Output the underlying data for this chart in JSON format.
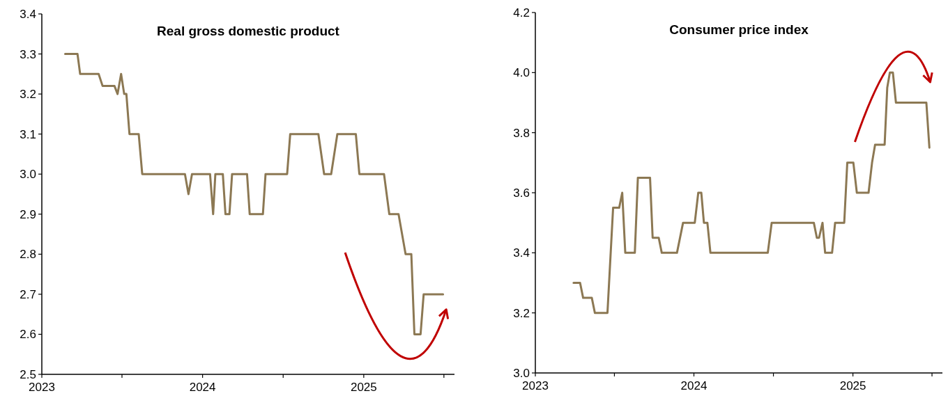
{
  "chart_data": [
    {
      "type": "line",
      "title": "Real gross domestic product",
      "x": [
        "2023-02-23",
        "2023-03-23",
        "2023-03-29",
        "2023-05-10",
        "2023-05-19",
        "2023-06-15",
        "2023-06-22",
        "2023-06-30",
        "2023-07-07",
        "2023-07-12",
        "2023-07-19",
        "2023-08-09",
        "2023-08-17",
        "2023-11-22",
        "2023-11-30",
        "2023-12-08",
        "2024-01-18",
        "2024-01-25",
        "2024-01-30",
        "2024-02-16",
        "2024-02-22",
        "2024-03-02",
        "2024-03-08",
        "2024-04-11",
        "2024-04-17",
        "2024-05-17",
        "2024-05-23",
        "2024-07-11",
        "2024-07-18",
        "2024-09-20",
        "2024-10-03",
        "2024-10-19",
        "2024-11-02",
        "2024-12-14",
        "2024-12-22",
        "2025-02-16",
        "2025-02-28",
        "2025-03-21",
        "2025-04-06",
        "2025-04-19",
        "2025-04-26",
        "2025-05-10",
        "2025-05-17",
        "2025-06-30"
      ],
      "series": [
        {
          "color": "#8c7853",
          "values": [
            3.3,
            3.3,
            3.25,
            3.25,
            3.22,
            3.22,
            3.2,
            3.25,
            3.2,
            3.2,
            3.1,
            3.1,
            3.0,
            3.0,
            2.95,
            3.0,
            3.0,
            2.9,
            3.0,
            3.0,
            2.9,
            2.9,
            3.0,
            3.0,
            2.9,
            2.9,
            3.0,
            3.0,
            3.1,
            3.1,
            3.0,
            3.0,
            3.1,
            3.1,
            3.0,
            3.0,
            2.9,
            2.9,
            2.8,
            2.8,
            2.6,
            2.6,
            2.7,
            2.7
          ]
        }
      ],
      "xlim": [
        "2023-01-01",
        "2025-07-26"
      ],
      "xticks": [
        {
          "value": "2023-01-01",
          "label": "2023"
        },
        {
          "value": "2023-07-02",
          "label": null
        },
        {
          "value": "2024-01-01",
          "label": "2024"
        },
        {
          "value": "2024-07-02",
          "label": null
        },
        {
          "value": "2025-01-01",
          "label": "2025"
        },
        {
          "value": "2025-07-02",
          "label": null
        }
      ],
      "ylim": [
        2.5,
        3.4
      ],
      "yticks": [
        {
          "value": 2.5,
          "label": "2.5"
        },
        {
          "value": 2.6,
          "label": "2.6"
        },
        {
          "value": 2.7,
          "label": "2.7"
        },
        {
          "value": 2.8,
          "label": "2.8"
        },
        {
          "value": 2.9,
          "label": "2.9"
        },
        {
          "value": 3.0,
          "label": "3.0"
        },
        {
          "value": 3.1,
          "label": "3.1"
        },
        {
          "value": 3.2,
          "label": "3.2"
        },
        {
          "value": 3.3,
          "label": "3.3"
        },
        {
          "value": 3.4,
          "label": "3.4"
        }
      ]
    },
    {
      "type": "line",
      "title": "Consumer price index",
      "x": [
        "2023-03-30",
        "2023-04-14",
        "2023-04-21",
        "2023-05-11",
        "2023-05-18",
        "2023-06-16",
        "2023-06-29",
        "2023-07-13",
        "2023-07-20",
        "2023-07-27",
        "2023-08-18",
        "2023-08-25",
        "2023-09-22",
        "2023-09-28",
        "2023-10-12",
        "2023-10-19",
        "2023-11-23",
        "2023-12-07",
        "2024-01-03",
        "2024-01-11",
        "2024-01-18",
        "2024-01-24",
        "2024-02-01",
        "2024-02-08",
        "2024-06-19",
        "2024-06-28",
        "2024-10-03",
        "2024-10-10",
        "2024-10-15",
        "2024-10-23",
        "2024-10-29",
        "2024-11-14",
        "2024-11-21",
        "2024-12-12",
        "2024-12-19",
        "2025-01-02",
        "2025-01-10",
        "2025-02-06",
        "2025-02-14",
        "2025-02-21",
        "2025-03-15",
        "2025-03-21",
        "2025-03-27",
        "2025-04-03",
        "2025-04-10",
        "2025-06-19",
        "2025-06-26"
      ],
      "series": [
        {
          "color": "#8c7853",
          "values": [
            3.3,
            3.3,
            3.25,
            3.25,
            3.2,
            3.2,
            3.55,
            3.55,
            3.6,
            3.4,
            3.4,
            3.65,
            3.65,
            3.45,
            3.45,
            3.4,
            3.4,
            3.5,
            3.5,
            3.6,
            3.6,
            3.5,
            3.5,
            3.4,
            3.4,
            3.5,
            3.5,
            3.45,
            3.45,
            3.5,
            3.4,
            3.4,
            3.5,
            3.5,
            3.7,
            3.7,
            3.6,
            3.6,
            3.7,
            3.76,
            3.76,
            3.95,
            4.0,
            4.0,
            3.9,
            3.9,
            3.75
          ]
        }
      ],
      "xlim": [
        "2023-01-01",
        "2025-07-26"
      ],
      "xticks": [
        {
          "value": "2023-01-01",
          "label": "2023"
        },
        {
          "value": "2023-07-02",
          "label": null
        },
        {
          "value": "2024-01-01",
          "label": "2024"
        },
        {
          "value": "2024-07-02",
          "label": null
        },
        {
          "value": "2025-01-01",
          "label": "2025"
        },
        {
          "value": "2025-07-02",
          "label": null
        }
      ],
      "ylim": [
        3.0,
        4.2
      ],
      "yticks": [
        {
          "value": 3.0,
          "label": "3.0"
        },
        {
          "value": 3.2,
          "label": "3.2"
        },
        {
          "value": 3.4,
          "label": "3.4"
        },
        {
          "value": 3.6,
          "label": "3.6"
        },
        {
          "value": 3.8,
          "label": "3.8"
        },
        {
          "value": 4.0,
          "label": "4.0"
        },
        {
          "value": 4.2,
          "label": "4.2"
        }
      ]
    }
  ]
}
